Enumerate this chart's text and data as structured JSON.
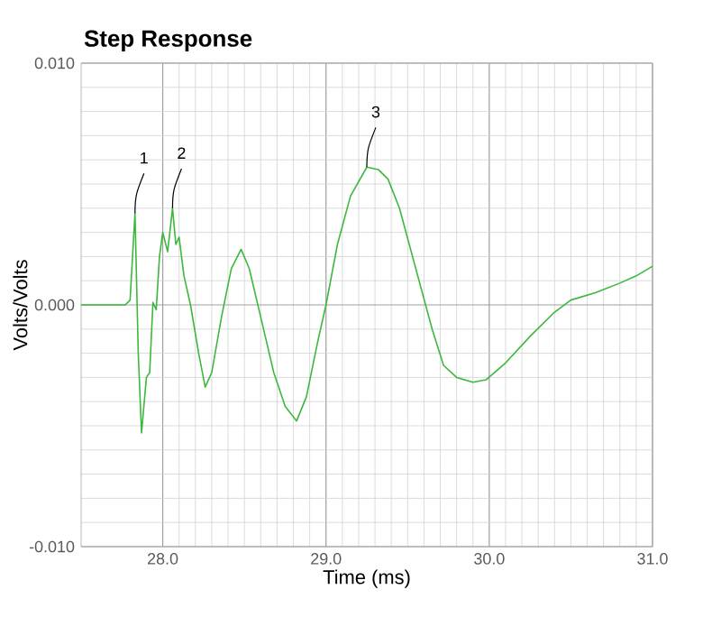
{
  "chart_data": {
    "type": "line",
    "title": "Step Response",
    "xlabel": "Time (ms)",
    "ylabel": "Volts/Volts",
    "xlim": [
      27.5,
      31.0
    ],
    "ylim": [
      -0.01,
      0.01
    ],
    "xticks": [
      {
        "value": 28,
        "label": "28.0"
      },
      {
        "value": 29,
        "label": "29.0"
      },
      {
        "value": 30,
        "label": "30.0"
      },
      {
        "value": 31,
        "label": "31.0"
      }
    ],
    "yticks": [
      {
        "value": -0.01,
        "label": "-0.010"
      },
      {
        "value": 0,
        "label": "0.000"
      },
      {
        "value": 0.01,
        "label": "0.010"
      }
    ],
    "grid": true,
    "marker": "none",
    "line_style": "solid",
    "series": [
      {
        "color": "#3cb83c",
        "x": [
          27.5,
          27.77,
          27.8,
          27.83,
          27.85,
          27.87,
          27.9,
          27.92,
          27.94,
          27.96,
          27.98,
          28.0,
          28.03,
          28.06,
          28.08,
          28.1,
          28.13,
          28.17,
          28.22,
          28.26,
          28.3,
          28.36,
          28.42,
          28.48,
          28.53,
          28.6,
          28.68,
          28.75,
          28.82,
          28.88,
          28.95,
          29.0,
          29.07,
          29.15,
          29.25,
          29.32,
          29.38,
          29.45,
          29.55,
          29.65,
          29.72,
          29.8,
          29.9,
          29.98,
          30.1,
          30.25,
          30.4,
          30.5,
          30.65,
          30.8,
          30.9,
          31.0
        ],
        "values": [
          0.0,
          0.0,
          0.0002,
          0.0038,
          -0.002,
          -0.0053,
          -0.003,
          -0.0028,
          0.0001,
          -0.0002,
          0.002,
          0.003,
          0.0022,
          0.004,
          0.0025,
          0.0028,
          0.0012,
          0.0,
          -0.002,
          -0.0034,
          -0.0028,
          -0.0005,
          0.0015,
          0.0023,
          0.0015,
          -0.0005,
          -0.0028,
          -0.0042,
          -0.0048,
          -0.0038,
          -0.0015,
          0.0,
          0.0025,
          0.0045,
          0.0057,
          0.0056,
          0.0052,
          0.004,
          0.0015,
          -0.001,
          -0.0025,
          -0.003,
          -0.0032,
          -0.0031,
          -0.0024,
          -0.0013,
          -0.0003,
          0.0002,
          0.0005,
          0.0009,
          0.0012,
          0.0016
        ]
      }
    ],
    "annotations": [
      {
        "text": "1",
        "x": 27.83,
        "y": 0.0038
      },
      {
        "text": "2",
        "x": 28.06,
        "y": 0.004
      },
      {
        "text": "3",
        "x": 29.25,
        "y": 0.0057
      }
    ]
  }
}
